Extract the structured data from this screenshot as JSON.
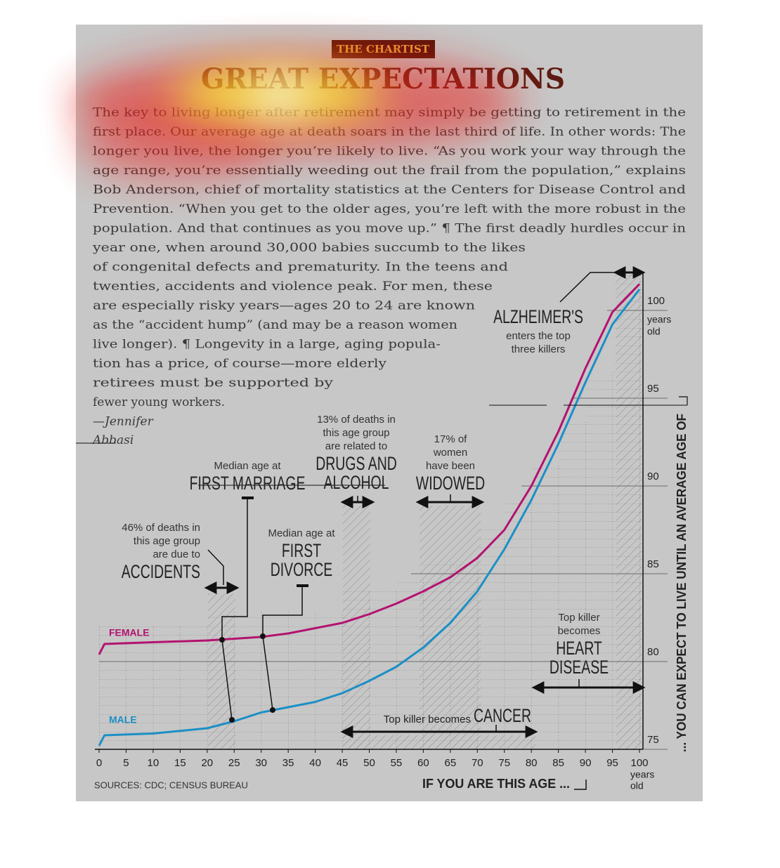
{
  "header": {
    "kicker": "THE CHARTIST",
    "title": "GREAT EXPECTATIONS"
  },
  "body": {
    "lines": [
      "The key to living longer after retirement may simply be getting to retirement in the",
      "first place. Our average age at death soars in the last third of life. In other words: The",
      "longer you live, the longer you’re likely to live. “As you work your way through the",
      "age range, you’re essentially weeding out the frail from the population,” explains",
      "Bob Anderson, chief of mortality statistics at the Centers for Disease Control and",
      "Prevention. “When you get to the older ages, you’re left with the more robust in the",
      "population. And that continues as you move up.” ¶ The first deadly hurdles occur in",
      "year one, when around 30,000 babies succumb to the likes",
      "of congenital defects and prematurity. In the teens and",
      "twenties, accidents and violence peak. For men, these",
      "are especially risky years—ages 20 to 24 are known",
      "as the “accident hump” (and may be a reason women",
      "live longer). ¶ Longevity in a large, aging popula-",
      "tion has a price, of course—more elderly",
      "retirees must be supported by",
      "fewer young workers."
    ],
    "byline": [
      "—Jennifer",
      "Abbasi"
    ]
  },
  "chart_data": {
    "type": "line",
    "x": [
      0,
      1,
      10,
      20,
      25,
      30,
      35,
      40,
      45,
      50,
      55,
      60,
      65,
      70,
      75,
      80,
      85,
      90,
      95,
      100
    ],
    "series": [
      {
        "name": "FEMALE",
        "color": "#b3126f",
        "values": [
          80.4,
          81.0,
          81.1,
          81.2,
          81.3,
          81.4,
          81.6,
          81.9,
          82.2,
          82.7,
          83.3,
          84.0,
          84.8,
          85.9,
          87.5,
          90.0,
          93.1,
          96.7,
          99.9,
          101.5
        ]
      },
      {
        "name": "MALE",
        "color": "#1b8fc6",
        "values": [
          75.2,
          75.8,
          75.9,
          76.2,
          76.6,
          77.1,
          77.4,
          77.7,
          78.2,
          78.9,
          79.7,
          80.8,
          82.2,
          84.0,
          86.4,
          89.2,
          92.4,
          95.9,
          99.2,
          101.2
        ]
      }
    ],
    "xlim": [
      0,
      100
    ],
    "ylim": [
      75,
      102.2
    ],
    "xticks": [
      0,
      5,
      10,
      15,
      20,
      25,
      30,
      35,
      40,
      45,
      50,
      55,
      60,
      65,
      70,
      75,
      80,
      85,
      90,
      95,
      100
    ],
    "yticks": [
      75,
      80,
      85,
      90,
      95,
      100
    ],
    "x_unit": [
      "years",
      "old"
    ],
    "y_unit": [
      "years",
      "old"
    ],
    "x_label": "IF YOU ARE THIS AGE ...",
    "y_label": "... YOU CAN EXPECT TO LIVE UNTIL AN AVERAGE AGE OF",
    "source": "SOURCES: CDC; CENSUS BUREAU",
    "grid": true,
    "annotations": [
      {
        "note": [
          "46% of deaths in",
          "this age group",
          "are due to"
        ],
        "label": [
          "ACCIDENTS"
        ]
      },
      {
        "note": [
          "Median age at"
        ],
        "label": [
          "FIRST MARRIAGE"
        ]
      },
      {
        "note": [
          "13% of deaths in",
          "this age group",
          "are related to"
        ],
        "label": [
          "DRUGS AND",
          "ALCOHOL"
        ]
      },
      {
        "note": [
          "17% of",
          "women",
          "have been"
        ],
        "label": [
          "WIDOWED"
        ]
      },
      {
        "note": [
          "Median age at"
        ],
        "label": [
          "FIRST",
          "DIVORCE"
        ]
      },
      {
        "note": [
          "enters the top",
          "three killers"
        ],
        "label": [
          "ALZHEIMER'S"
        ]
      },
      {
        "note": [
          "Top killer",
          "becomes"
        ],
        "label": [
          "HEART",
          "DISEASE"
        ]
      },
      {
        "note": [
          "Top killer becomes"
        ],
        "label": [
          "CANCER"
        ]
      }
    ]
  }
}
